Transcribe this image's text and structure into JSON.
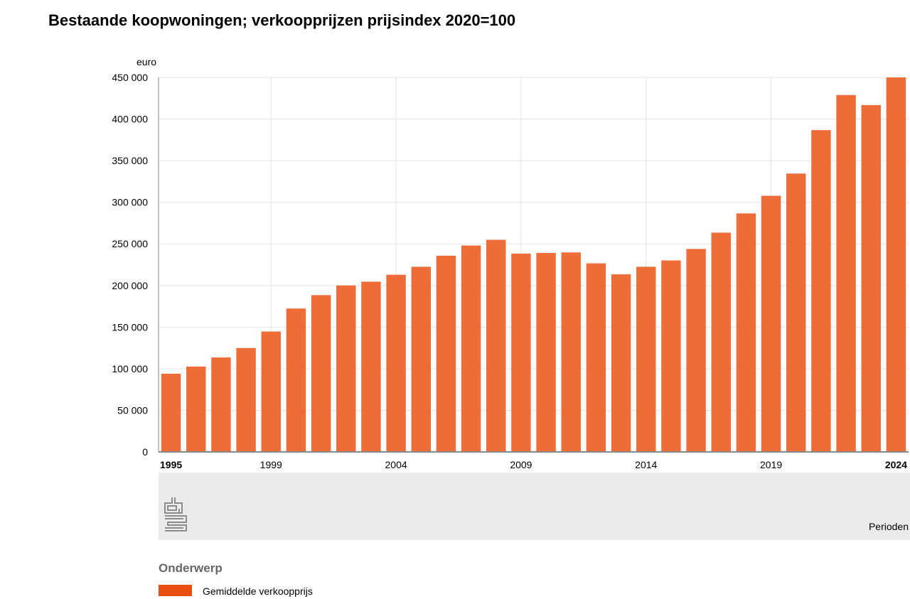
{
  "title": "Bestaande koopwoningen; verkoopprijzen prijsindex 2020=100",
  "colors": {
    "bar": "#ee6c37",
    "legend_swatch": "#e84e10",
    "grid": "#e3e3e3",
    "axis": "#888888",
    "footer_band": "#ebebeb",
    "logo": "#8c8c8c"
  },
  "logo": {
    "icon": "cbs-logo-icon"
  },
  "legend": {
    "heading": "Onderwerp",
    "items": [
      {
        "label": "Gemiddelde verkoopprijs"
      }
    ]
  },
  "chart_data": {
    "type": "bar",
    "ylabel": "euro",
    "xlabel": "Perioden",
    "ylim": [
      0,
      450000
    ],
    "yticks": [
      0,
      50000,
      100000,
      150000,
      200000,
      250000,
      300000,
      350000,
      400000,
      450000
    ],
    "ytick_labels": [
      "0",
      "50 000",
      "100 000",
      "150 000",
      "200 000",
      "250 000",
      "300 000",
      "350 000",
      "400 000",
      "450 000"
    ],
    "categories": [
      "1995",
      "1996",
      "1997",
      "1998",
      "1999",
      "2000",
      "2001",
      "2002",
      "2003",
      "2004",
      "2005",
      "2006",
      "2007",
      "2008",
      "2009",
      "2010",
      "2011",
      "2012",
      "2013",
      "2014",
      "2015",
      "2016",
      "2017",
      "2018",
      "2019",
      "2020",
      "2021",
      "2022",
      "2023",
      "2024"
    ],
    "xtick_labels": [
      {
        "label": "1995",
        "bold": true
      },
      {
        "label": "1999",
        "bold": false
      },
      {
        "label": "2004",
        "bold": false
      },
      {
        "label": "2009",
        "bold": false
      },
      {
        "label": "2014",
        "bold": false
      },
      {
        "label": "2019",
        "bold": false
      },
      {
        "label": "2024",
        "bold": true
      }
    ],
    "series": [
      {
        "name": "Gemiddelde verkoopprijs",
        "values": [
          94000,
          102600,
          113500,
          124800,
          144700,
          172300,
          188400,
          200000,
          204600,
          212900,
          222500,
          235800,
          248000,
          254900,
          238300,
          239100,
          239700,
          226600,
          213400,
          222500,
          230100,
          243900,
          263500,
          286600,
          307800,
          334500,
          386700,
          428900,
          416800,
          450600
        ]
      }
    ],
    "grid": true,
    "legend_position": "bottom-left"
  }
}
